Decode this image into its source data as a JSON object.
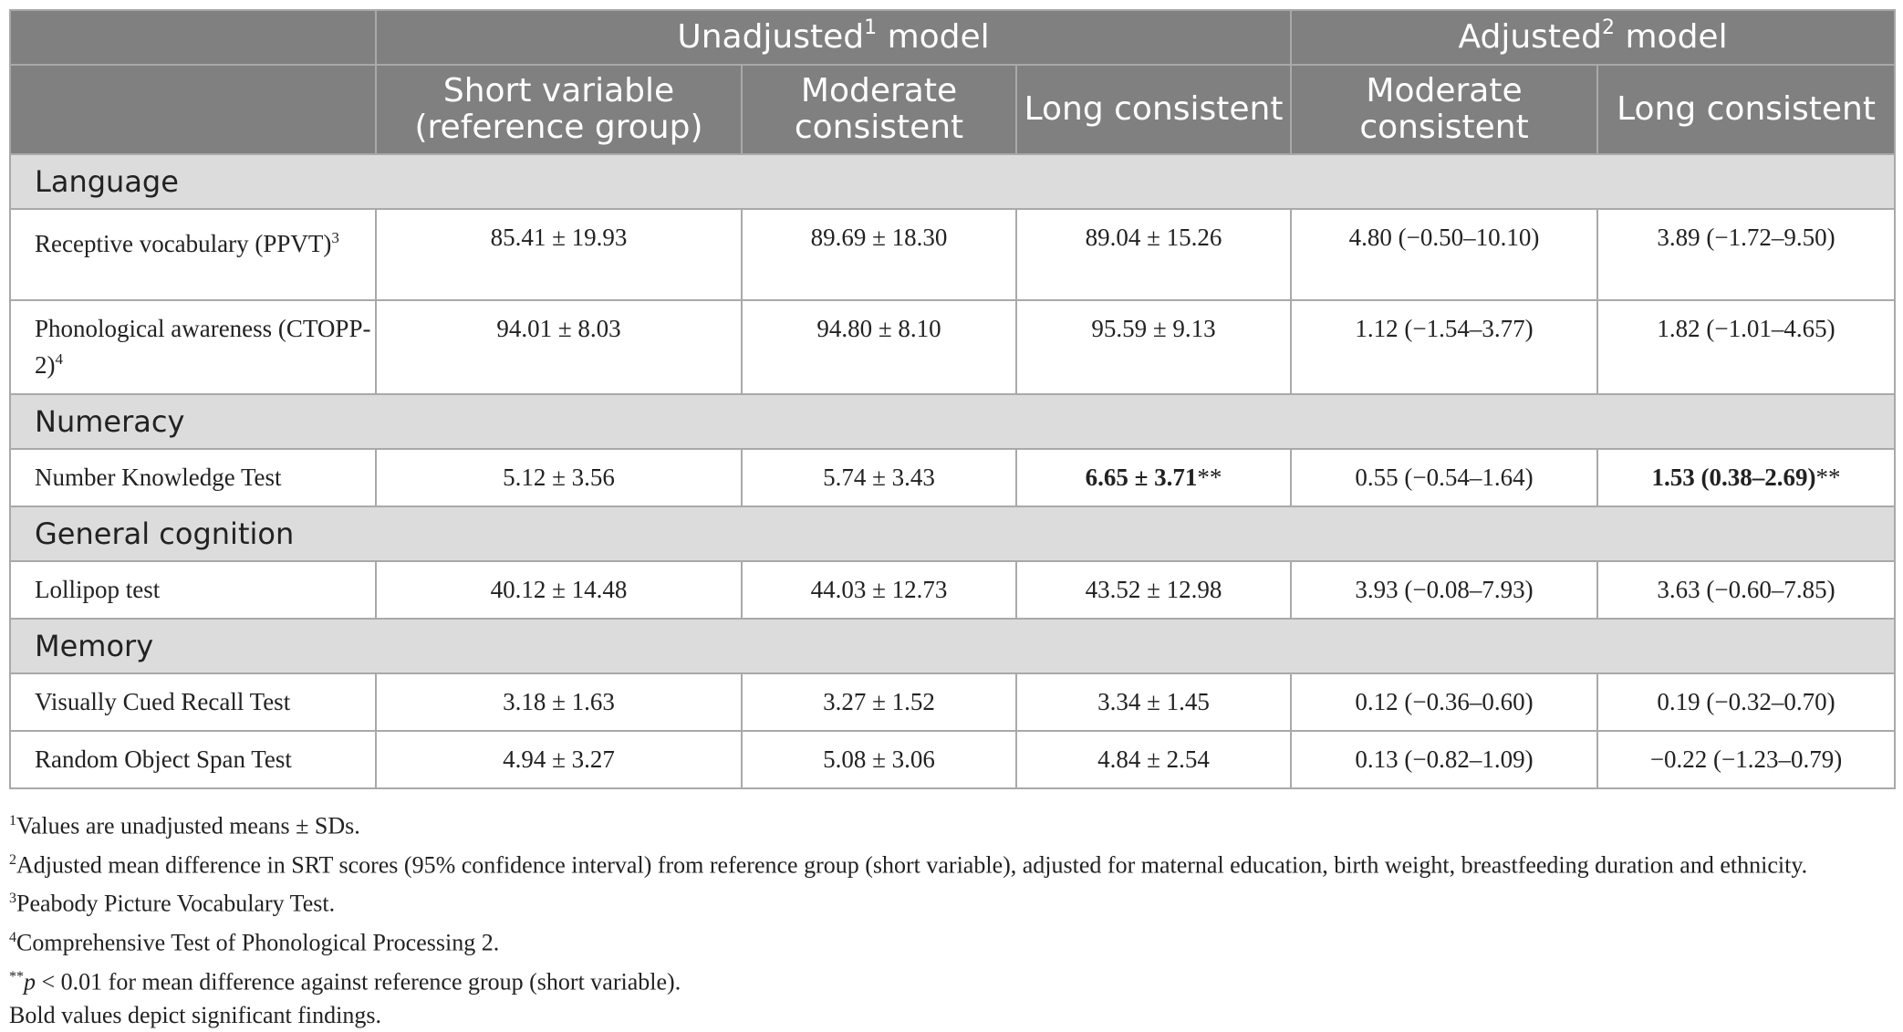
{
  "header": {
    "group_unadjusted": "Unadjusted",
    "group_unadjusted_sup": "1",
    "group_unadjusted_suffix": " model",
    "group_adjusted": "Adjusted",
    "group_adjusted_sup": "2",
    "group_adjusted_suffix": " model",
    "columns": [
      "Short variable (reference group)",
      "Moderate consistent",
      "Long consistent",
      "Moderate consistent",
      "Long consistent"
    ]
  },
  "sections": [
    {
      "title": "Language",
      "rows": [
        {
          "label": "Receptive vocabulary (PPVT)",
          "sup": "3",
          "values": [
            "85.41 ± 19.93",
            "89.69 ± 18.30",
            "89.04 ± 15.26",
            "4.80 (−0.50–10.10)",
            "3.89 (−1.72–9.50)"
          ],
          "bold": [
            false,
            false,
            false,
            false,
            false
          ],
          "stars": [
            "",
            "",
            "",
            "",
            ""
          ]
        },
        {
          "label": "Phonological awareness (CTOPP-2)",
          "sup": "4",
          "values": [
            "94.01 ± 8.03",
            "94.80 ± 8.10",
            "95.59 ± 9.13",
            "1.12 (−1.54–3.77)",
            "1.82 (−1.01–4.65)"
          ],
          "bold": [
            false,
            false,
            false,
            false,
            false
          ],
          "stars": [
            "",
            "",
            "",
            "",
            ""
          ]
        }
      ]
    },
    {
      "title": "Numeracy",
      "rows": [
        {
          "label": "Number Knowledge Test",
          "sup": "",
          "values": [
            "5.12 ± 3.56",
            "5.74 ± 3.43",
            "6.65 ± 3.71",
            "0.55 (−0.54–1.64)",
            "1.53 (0.38–2.69)"
          ],
          "bold": [
            false,
            false,
            true,
            false,
            true
          ],
          "stars": [
            "",
            "",
            "**",
            "",
            "**"
          ]
        }
      ]
    },
    {
      "title": "General cognition",
      "rows": [
        {
          "label": "Lollipop test",
          "sup": "",
          "values": [
            "40.12 ± 14.48",
            "44.03 ± 12.73",
            "43.52 ± 12.98",
            "3.93 (−0.08–7.93)",
            "3.63 (−0.60–7.85)"
          ],
          "bold": [
            false,
            false,
            false,
            false,
            false
          ],
          "stars": [
            "",
            "",
            "",
            "",
            ""
          ]
        }
      ]
    },
    {
      "title": "Memory",
      "rows": [
        {
          "label": "Visually Cued Recall Test",
          "sup": "",
          "values": [
            "3.18 ± 1.63",
            "3.27 ± 1.52",
            "3.34 ± 1.45",
            "0.12 (−0.36–0.60)",
            "0.19 (−0.32–0.70)"
          ],
          "bold": [
            false,
            false,
            false,
            false,
            false
          ],
          "stars": [
            "",
            "",
            "",
            "",
            ""
          ]
        },
        {
          "label": "Random Object Span Test",
          "sup": "",
          "values": [
            "4.94 ± 3.27",
            "5.08 ± 3.06",
            "4.84 ± 2.54",
            "0.13 (−0.82–1.09)",
            "−0.22 (−1.23–0.79)"
          ],
          "bold": [
            false,
            false,
            false,
            false,
            false
          ],
          "stars": [
            "",
            "",
            "",
            "",
            ""
          ]
        }
      ]
    }
  ],
  "footnotes": {
    "n1_mark": "1",
    "n1_text": "Values are unadjusted means ± SDs.",
    "n2_mark": "2",
    "n2_text": "Adjusted mean difference in SRT scores (95% confidence interval) from reference group (short variable), adjusted for maternal education, birth weight, breastfeeding duration and ethnicity.",
    "n3_mark": "3",
    "n3_text": "Peabody Picture Vocabulary Test.",
    "n4_mark": "4",
    "n4_text": "Comprehensive Test of Phonological Processing 2.",
    "n5_mark": "**",
    "n5_p": "p",
    "n5_text": " < 0.01 for mean difference against reference group (short variable).",
    "n6_text": "Bold values depict significant findings."
  }
}
